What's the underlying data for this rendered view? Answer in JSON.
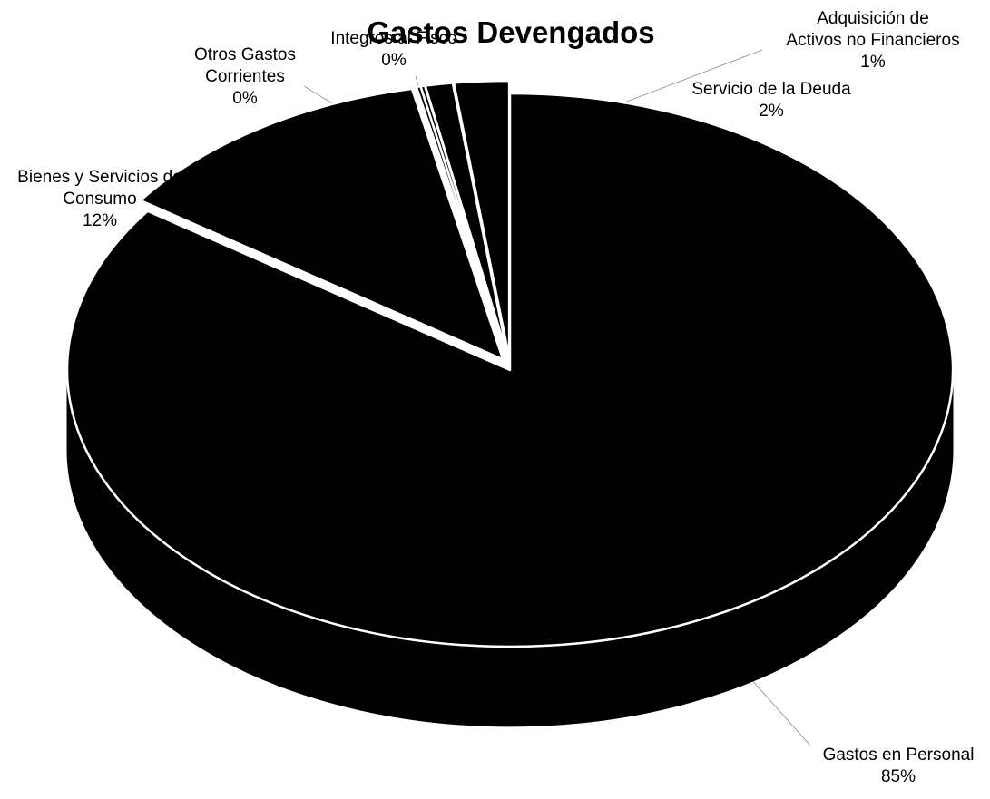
{
  "chart_data": {
    "type": "pie",
    "title": "Gastos Devengados",
    "view": "3d-exploded",
    "fill_color": "#000000",
    "edge_color": "#ffffff",
    "slices": [
      {
        "name": "Gastos en Personal",
        "label_lines": [
          "Gastos en Personal"
        ],
        "value": 85,
        "value_label": "85%"
      },
      {
        "name": "Bienes y Servicios de Consumo",
        "label_lines": [
          "Bienes y Servicios de",
          "Consumo"
        ],
        "value": 12,
        "value_label": "12%"
      },
      {
        "name": "Otros Gastos Corrientes",
        "label_lines": [
          "Otros Gastos",
          "Corrientes"
        ],
        "value": 0,
        "value_label": "0%"
      },
      {
        "name": "Integros al Fisco",
        "label_lines": [
          "Integros al Fisco"
        ],
        "value": 0,
        "value_label": "0%"
      },
      {
        "name": "Adquisición de Activos no Financieros",
        "label_lines": [
          "Adquisición de",
          "Activos no Financieros"
        ],
        "value": 1,
        "value_label": "1%"
      },
      {
        "name": "Servicio de la Deuda",
        "label_lines": [
          "Servicio de la Deuda"
        ],
        "value": 2,
        "value_label": "2%"
      }
    ]
  }
}
